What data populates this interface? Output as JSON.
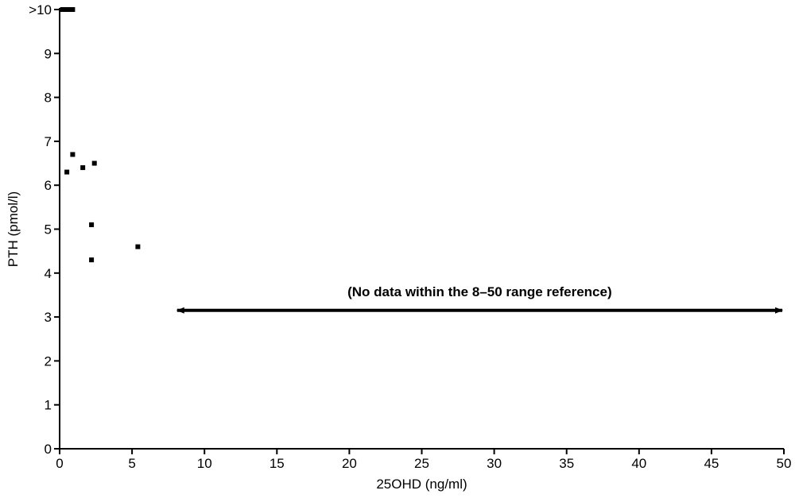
{
  "chart_data": {
    "type": "scatter",
    "title": "",
    "xlabel": "25OHD (ng/ml)",
    "ylabel": "PTH (pmol/l)",
    "xlim": [
      0,
      50
    ],
    "ylim": [
      0,
      10
    ],
    "x_ticks": [
      "0",
      "5",
      "10",
      "15",
      "20",
      "25",
      "30",
      "35",
      "40",
      "45",
      "50"
    ],
    "y_ticks": [
      "0",
      "1",
      "2",
      "3",
      "4",
      "5",
      "6",
      "7",
      "8",
      "9",
      ">10"
    ],
    "grid": false,
    "series": [
      {
        "color": "#000000",
        "marker": "square",
        "points": [
          {
            "x": 0.2,
            "y": 10
          },
          {
            "x": 0.5,
            "y": 10
          },
          {
            "x": 0.8,
            "y": 10
          },
          {
            "x": 0.9,
            "y": 10
          },
          {
            "x": 0.5,
            "y": 6.3
          },
          {
            "x": 0.9,
            "y": 6.7
          },
          {
            "x": 1.6,
            "y": 6.4
          },
          {
            "x": 2.4,
            "y": 6.5
          },
          {
            "x": 2.2,
            "y": 5.1
          },
          {
            "x": 2.2,
            "y": 4.3
          },
          {
            "x": 5.4,
            "y": 4.6
          }
        ]
      }
    ],
    "annotations": [
      {
        "text": "(No data within the 8–50 range reference)",
        "arrow": {
          "x_start": 8,
          "x_end": 50,
          "y": 3.15,
          "style": "double-headed"
        }
      }
    ]
  }
}
